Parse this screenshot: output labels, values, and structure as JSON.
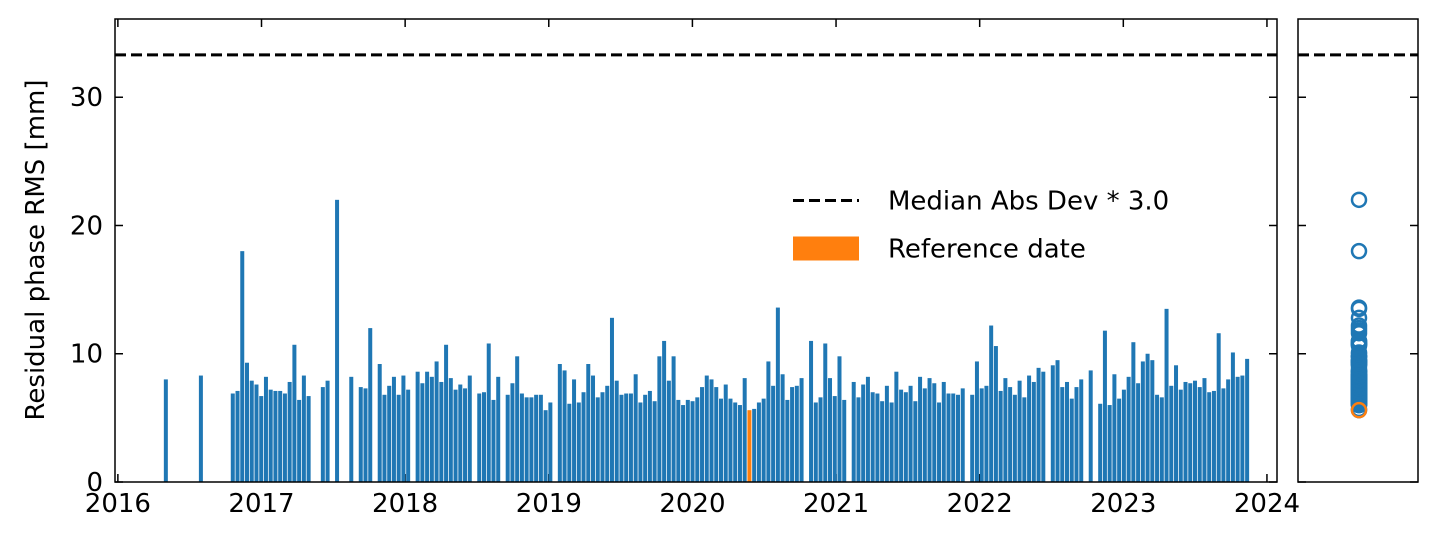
{
  "chart_data": {
    "type": "bar",
    "ylabel": "Residual phase RMS [mm]",
    "xlim": [
      2015.98,
      2024.07
    ],
    "xticks": [
      2016,
      2017,
      2018,
      2019,
      2020,
      2021,
      2022,
      2023,
      2024
    ],
    "ylim": [
      0,
      36.1
    ],
    "yticks": [
      0,
      10,
      20,
      30
    ],
    "legend": "center right",
    "series": [
      {
        "color": "#1f77b4",
        "x": [
          2016.334,
          2016.578,
          2016.8,
          2016.833,
          2016.866,
          2016.899,
          2016.932,
          2016.965,
          2016.998,
          2017.031,
          2017.064,
          2017.097,
          2017.13,
          2017.163,
          2017.196,
          2017.229,
          2017.262,
          2017.295,
          2017.328,
          2017.427,
          2017.46,
          2017.526,
          2017.625,
          2017.691,
          2017.724,
          2017.757,
          2017.823,
          2017.856,
          2017.889,
          2017.922,
          2017.955,
          2017.988,
          2018.021,
          2018.087,
          2018.12,
          2018.153,
          2018.186,
          2018.219,
          2018.252,
          2018.285,
          2018.318,
          2018.351,
          2018.384,
          2018.417,
          2018.45,
          2018.516,
          2018.549,
          2018.582,
          2018.615,
          2018.648,
          2018.714,
          2018.747,
          2018.78,
          2018.813,
          2018.846,
          2018.879,
          2018.912,
          2018.945,
          2018.978,
          2019.011,
          2019.077,
          2019.11,
          2019.143,
          2019.176,
          2019.209,
          2019.242,
          2019.275,
          2019.308,
          2019.341,
          2019.374,
          2019.407,
          2019.44,
          2019.473,
          2019.506,
          2019.539,
          2019.572,
          2019.605,
          2019.638,
          2019.671,
          2019.704,
          2019.737,
          2019.77,
          2019.803,
          2019.836,
          2019.869,
          2019.902,
          2019.935,
          2019.968,
          2020.001,
          2020.034,
          2020.067,
          2020.1,
          2020.133,
          2020.166,
          2020.199,
          2020.232,
          2020.265,
          2020.298,
          2020.331,
          2020.364,
          2020.43,
          2020.463,
          2020.496,
          2020.529,
          2020.562,
          2020.595,
          2020.628,
          2020.661,
          2020.694,
          2020.727,
          2020.76,
          2020.826,
          2020.859,
          2020.892,
          2020.925,
          2020.958,
          2020.991,
          2021.024,
          2021.057,
          2021.123,
          2021.156,
          2021.189,
          2021.222,
          2021.255,
          2021.288,
          2021.321,
          2021.354,
          2021.387,
          2021.42,
          2021.453,
          2021.486,
          2021.519,
          2021.552,
          2021.585,
          2021.618,
          2021.651,
          2021.684,
          2021.717,
          2021.75,
          2021.783,
          2021.816,
          2021.849,
          2021.882,
          2021.948,
          2021.981,
          2022.014,
          2022.047,
          2022.08,
          2022.113,
          2022.146,
          2022.179,
          2022.212,
          2022.245,
          2022.278,
          2022.311,
          2022.344,
          2022.377,
          2022.41,
          2022.443,
          2022.509,
          2022.542,
          2022.575,
          2022.608,
          2022.641,
          2022.674,
          2022.707,
          2022.773,
          2022.839,
          2022.872,
          2022.905,
          2022.938,
          2022.971,
          2023.004,
          2023.037,
          2023.07,
          2023.103,
          2023.136,
          2023.169,
          2023.202,
          2023.235,
          2023.268,
          2023.301,
          2023.334,
          2023.367,
          2023.4,
          2023.433,
          2023.466,
          2023.499,
          2023.532,
          2023.565,
          2023.598,
          2023.631,
          2023.664,
          2023.697,
          2023.73,
          2023.763,
          2023.796,
          2023.829,
          2023.862
        ],
        "values": [
          8.0,
          8.3,
          6.9,
          7.1,
          18.0,
          9.3,
          7.9,
          7.6,
          6.7,
          8.2,
          7.2,
          7.1,
          7.1,
          6.9,
          7.8,
          10.7,
          6.4,
          8.3,
          6.7,
          7.4,
          7.9,
          22.0,
          8.2,
          7.4,
          7.3,
          12.0,
          9.2,
          6.8,
          7.5,
          8.2,
          6.8,
          8.3,
          7.2,
          8.6,
          7.7,
          8.6,
          8.2,
          9.4,
          7.8,
          10.7,
          8.1,
          7.2,
          7.6,
          7.3,
          8.3,
          6.9,
          7.0,
          10.8,
          6.4,
          8.2,
          6.8,
          7.7,
          9.8,
          6.9,
          6.6,
          6.6,
          6.8,
          6.8,
          5.6,
          6.2,
          9.2,
          8.7,
          6.1,
          8.0,
          6.2,
          7.0,
          9.2,
          8.3,
          6.6,
          7.0,
          7.5,
          12.8,
          7.9,
          6.8,
          6.9,
          6.9,
          8.4,
          6.2,
          6.8,
          7.1,
          6.3,
          9.8,
          11.0,
          7.9,
          9.8,
          6.4,
          6.0,
          6.4,
          6.3,
          6.6,
          7.4,
          8.3,
          8.0,
          7.4,
          6.5,
          7.6,
          6.5,
          6.2,
          6.0,
          8.1,
          5.7,
          6.2,
          6.5,
          9.4,
          7.5,
          13.6,
          8.4,
          6.4,
          7.4,
          7.5,
          8.1,
          11.0,
          6.2,
          6.6,
          10.8,
          8.1,
          6.7,
          9.8,
          6.4,
          7.8,
          6.6,
          7.6,
          8.2,
          7.0,
          6.9,
          6.3,
          7.5,
          6.2,
          8.6,
          7.2,
          7.0,
          7.5,
          6.3,
          8.2,
          7.3,
          8.1,
          7.7,
          6.2,
          7.8,
          6.9,
          6.9,
          6.8,
          7.3,
          6.8,
          9.4,
          7.3,
          7.5,
          12.2,
          10.6,
          7.1,
          8.1,
          7.4,
          6.8,
          7.9,
          6.6,
          8.3,
          7.8,
          8.9,
          8.6,
          9.1,
          9.5,
          7.4,
          7.8,
          6.5,
          7.4,
          8.0,
          8.7,
          6.1,
          11.8,
          6.0,
          8.4,
          6.5,
          7.2,
          8.2,
          10.9,
          7.7,
          9.4,
          10.0,
          9.5,
          6.8,
          6.6,
          13.5,
          7.5,
          9.1,
          7.2,
          7.8,
          7.7,
          7.9,
          7.4,
          8.1,
          7.0,
          7.1,
          11.6,
          7.3,
          8.0,
          10.1,
          8.2,
          8.3,
          9.6
        ]
      },
      {
        "name": "Reference date",
        "color": "#ff7f0e",
        "x": [
          2020.397
        ],
        "values": [
          5.6
        ]
      }
    ],
    "lines": [
      {
        "name": "Median Abs Dev * 3.0",
        "y": 33.3,
        "color": "#000000",
        "dashed": true
      }
    ]
  }
}
